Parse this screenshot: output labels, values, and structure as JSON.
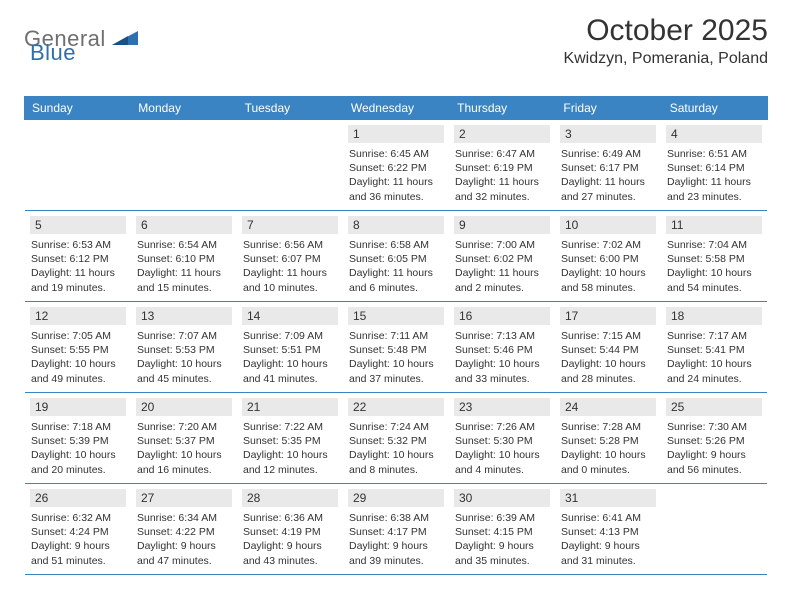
{
  "logo": {
    "grey": "General",
    "blue": "Blue"
  },
  "title": "October 2025",
  "location": "Kwidzyn, Pomerania, Poland",
  "colors": {
    "header_bar": "#3a84c4",
    "header_text": "#ffffff",
    "day_num_bg": "#e9e9e9",
    "text": "#333333",
    "logo_grey": "#6f6f6f",
    "logo_blue": "#2f6fb0",
    "rule": "#3a84c4"
  },
  "days_of_week": [
    "Sunday",
    "Monday",
    "Tuesday",
    "Wednesday",
    "Thursday",
    "Friday",
    "Saturday"
  ],
  "weeks": [
    [
      null,
      null,
      null,
      {
        "num": "1",
        "sunrise": "Sunrise: 6:45 AM",
        "sunset": "Sunset: 6:22 PM",
        "daylight": "Daylight: 11 hours and 36 minutes."
      },
      {
        "num": "2",
        "sunrise": "Sunrise: 6:47 AM",
        "sunset": "Sunset: 6:19 PM",
        "daylight": "Daylight: 11 hours and 32 minutes."
      },
      {
        "num": "3",
        "sunrise": "Sunrise: 6:49 AM",
        "sunset": "Sunset: 6:17 PM",
        "daylight": "Daylight: 11 hours and 27 minutes."
      },
      {
        "num": "4",
        "sunrise": "Sunrise: 6:51 AM",
        "sunset": "Sunset: 6:14 PM",
        "daylight": "Daylight: 11 hours and 23 minutes."
      }
    ],
    [
      {
        "num": "5",
        "sunrise": "Sunrise: 6:53 AM",
        "sunset": "Sunset: 6:12 PM",
        "daylight": "Daylight: 11 hours and 19 minutes."
      },
      {
        "num": "6",
        "sunrise": "Sunrise: 6:54 AM",
        "sunset": "Sunset: 6:10 PM",
        "daylight": "Daylight: 11 hours and 15 minutes."
      },
      {
        "num": "7",
        "sunrise": "Sunrise: 6:56 AM",
        "sunset": "Sunset: 6:07 PM",
        "daylight": "Daylight: 11 hours and 10 minutes."
      },
      {
        "num": "8",
        "sunrise": "Sunrise: 6:58 AM",
        "sunset": "Sunset: 6:05 PM",
        "daylight": "Daylight: 11 hours and 6 minutes."
      },
      {
        "num": "9",
        "sunrise": "Sunrise: 7:00 AM",
        "sunset": "Sunset: 6:02 PM",
        "daylight": "Daylight: 11 hours and 2 minutes."
      },
      {
        "num": "10",
        "sunrise": "Sunrise: 7:02 AM",
        "sunset": "Sunset: 6:00 PM",
        "daylight": "Daylight: 10 hours and 58 minutes."
      },
      {
        "num": "11",
        "sunrise": "Sunrise: 7:04 AM",
        "sunset": "Sunset: 5:58 PM",
        "daylight": "Daylight: 10 hours and 54 minutes."
      }
    ],
    [
      {
        "num": "12",
        "sunrise": "Sunrise: 7:05 AM",
        "sunset": "Sunset: 5:55 PM",
        "daylight": "Daylight: 10 hours and 49 minutes."
      },
      {
        "num": "13",
        "sunrise": "Sunrise: 7:07 AM",
        "sunset": "Sunset: 5:53 PM",
        "daylight": "Daylight: 10 hours and 45 minutes."
      },
      {
        "num": "14",
        "sunrise": "Sunrise: 7:09 AM",
        "sunset": "Sunset: 5:51 PM",
        "daylight": "Daylight: 10 hours and 41 minutes."
      },
      {
        "num": "15",
        "sunrise": "Sunrise: 7:11 AM",
        "sunset": "Sunset: 5:48 PM",
        "daylight": "Daylight: 10 hours and 37 minutes."
      },
      {
        "num": "16",
        "sunrise": "Sunrise: 7:13 AM",
        "sunset": "Sunset: 5:46 PM",
        "daylight": "Daylight: 10 hours and 33 minutes."
      },
      {
        "num": "17",
        "sunrise": "Sunrise: 7:15 AM",
        "sunset": "Sunset: 5:44 PM",
        "daylight": "Daylight: 10 hours and 28 minutes."
      },
      {
        "num": "18",
        "sunrise": "Sunrise: 7:17 AM",
        "sunset": "Sunset: 5:41 PM",
        "daylight": "Daylight: 10 hours and 24 minutes."
      }
    ],
    [
      {
        "num": "19",
        "sunrise": "Sunrise: 7:18 AM",
        "sunset": "Sunset: 5:39 PM",
        "daylight": "Daylight: 10 hours and 20 minutes."
      },
      {
        "num": "20",
        "sunrise": "Sunrise: 7:20 AM",
        "sunset": "Sunset: 5:37 PM",
        "daylight": "Daylight: 10 hours and 16 minutes."
      },
      {
        "num": "21",
        "sunrise": "Sunrise: 7:22 AM",
        "sunset": "Sunset: 5:35 PM",
        "daylight": "Daylight: 10 hours and 12 minutes."
      },
      {
        "num": "22",
        "sunrise": "Sunrise: 7:24 AM",
        "sunset": "Sunset: 5:32 PM",
        "daylight": "Daylight: 10 hours and 8 minutes."
      },
      {
        "num": "23",
        "sunrise": "Sunrise: 7:26 AM",
        "sunset": "Sunset: 5:30 PM",
        "daylight": "Daylight: 10 hours and 4 minutes."
      },
      {
        "num": "24",
        "sunrise": "Sunrise: 7:28 AM",
        "sunset": "Sunset: 5:28 PM",
        "daylight": "Daylight: 10 hours and 0 minutes."
      },
      {
        "num": "25",
        "sunrise": "Sunrise: 7:30 AM",
        "sunset": "Sunset: 5:26 PM",
        "daylight": "Daylight: 9 hours and 56 minutes."
      }
    ],
    [
      {
        "num": "26",
        "sunrise": "Sunrise: 6:32 AM",
        "sunset": "Sunset: 4:24 PM",
        "daylight": "Daylight: 9 hours and 51 minutes."
      },
      {
        "num": "27",
        "sunrise": "Sunrise: 6:34 AM",
        "sunset": "Sunset: 4:22 PM",
        "daylight": "Daylight: 9 hours and 47 minutes."
      },
      {
        "num": "28",
        "sunrise": "Sunrise: 6:36 AM",
        "sunset": "Sunset: 4:19 PM",
        "daylight": "Daylight: 9 hours and 43 minutes."
      },
      {
        "num": "29",
        "sunrise": "Sunrise: 6:38 AM",
        "sunset": "Sunset: 4:17 PM",
        "daylight": "Daylight: 9 hours and 39 minutes."
      },
      {
        "num": "30",
        "sunrise": "Sunrise: 6:39 AM",
        "sunset": "Sunset: 4:15 PM",
        "daylight": "Daylight: 9 hours and 35 minutes."
      },
      {
        "num": "31",
        "sunrise": "Sunrise: 6:41 AM",
        "sunset": "Sunset: 4:13 PM",
        "daylight": "Daylight: 9 hours and 31 minutes."
      },
      null
    ]
  ]
}
